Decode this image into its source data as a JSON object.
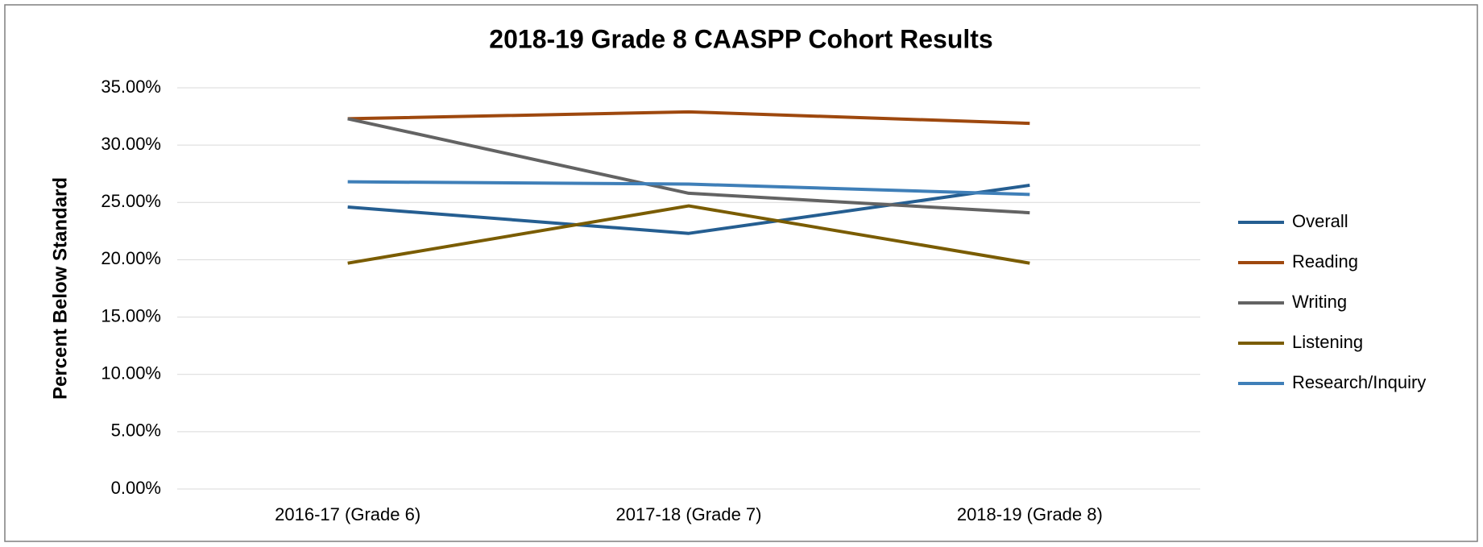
{
  "chart_data": {
    "type": "line",
    "title": "2018-19 Grade 8 CAASPP Cohort Results",
    "y_label": "Percent Below Standard",
    "categories": [
      "2016-17 (Grade 6)",
      "2017-18 (Grade 7)",
      "2018-19 (Grade 8)"
    ],
    "series": [
      {
        "name": "Overall",
        "color": "#255e91",
        "values": [
          24.6,
          22.3,
          26.5
        ]
      },
      {
        "name": "Reading",
        "color": "#9e480e",
        "values": [
          32.3,
          32.9,
          31.9
        ]
      },
      {
        "name": "Writing",
        "color": "#636363",
        "values": [
          32.3,
          25.8,
          24.1
        ]
      },
      {
        "name": "Listening",
        "color": "#7a5c00",
        "values": [
          19.7,
          24.7,
          19.7
        ]
      },
      {
        "name": "Research/Inquiry",
        "color": "#3f7fb8",
        "values": [
          26.8,
          26.6,
          25.7
        ]
      }
    ],
    "ylim": [
      0,
      35
    ],
    "yticks": [
      {
        "value": 0,
        "label": "0.00%"
      },
      {
        "value": 5,
        "label": "5.00%"
      },
      {
        "value": 10,
        "label": "10.00%"
      },
      {
        "value": 15,
        "label": "15.00%"
      },
      {
        "value": 20,
        "label": "20.00%"
      },
      {
        "value": 25,
        "label": "25.00%"
      },
      {
        "value": 30,
        "label": "30.00%"
      },
      {
        "value": 35,
        "label": "35.00%"
      }
    ],
    "grid": true,
    "legend": "right"
  }
}
